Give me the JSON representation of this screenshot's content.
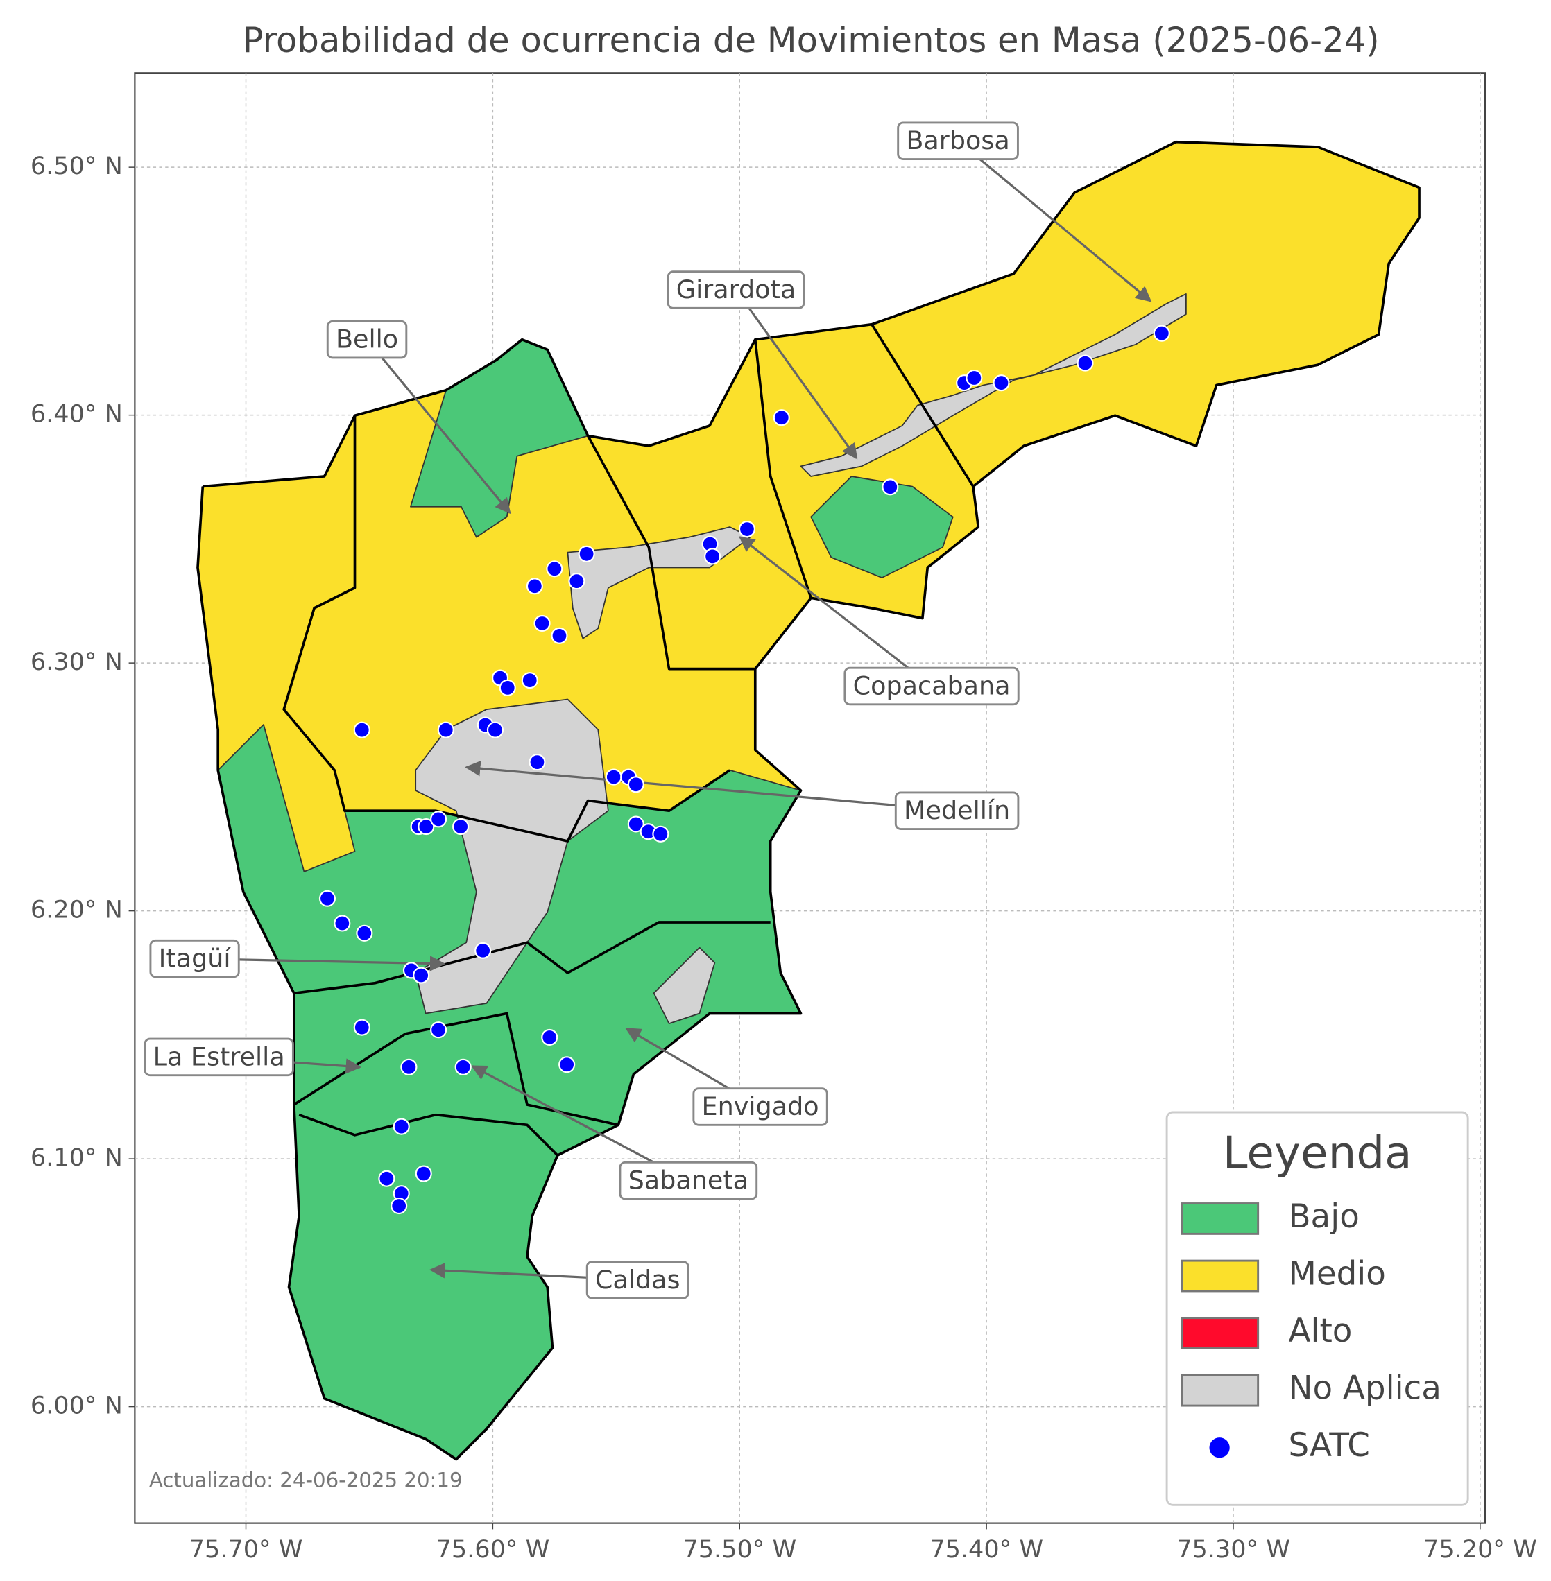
{
  "chart_data": {
    "type": "map",
    "title": "Probabilidad de ocurrencia de Movimientos en Masa (2025-06-24)",
    "xlim": [
      -75.745,
      -75.198
    ],
    "ylim": [
      5.953,
      6.538
    ],
    "xticks": [
      {
        "value": -75.7,
        "label": "75.70° W"
      },
      {
        "value": -75.6,
        "label": "75.60° W"
      },
      {
        "value": -75.5,
        "label": "75.50° W"
      },
      {
        "value": -75.4,
        "label": "75.40° W"
      },
      {
        "value": -75.3,
        "label": "75.30° W"
      },
      {
        "value": -75.2,
        "label": "75.20° W"
      }
    ],
    "yticks": [
      {
        "value": 6.0,
        "label": "6.00° N"
      },
      {
        "value": 6.1,
        "label": "6.10° N"
      },
      {
        "value": 6.2,
        "label": "6.20° N"
      },
      {
        "value": 6.3,
        "label": "6.30° N"
      },
      {
        "value": 6.4,
        "label": "6.40° N"
      },
      {
        "value": 6.5,
        "label": "6.50° N"
      }
    ],
    "grid": true,
    "legend": {
      "title": "Leyenda",
      "position": "lower right",
      "items": [
        {
          "label": "Bajo",
          "color": "#4bc878"
        },
        {
          "label": "Medio",
          "color": "#fbe02b"
        },
        {
          "label": "Alto",
          "color": "#ff0a2c"
        },
        {
          "label": "No Aplica",
          "color": "#d3d3d3"
        }
      ]
    },
    "series": [
      {
        "name": "SATC",
        "color": "#0000ff",
        "x": [
          -75.483,
          -75.409,
          -75.405,
          -75.394,
          -75.36,
          -75.329,
          -75.439,
          -75.497,
          -75.512,
          -75.511,
          -75.562,
          -75.575,
          -75.566,
          -75.583,
          -75.58,
          -75.573,
          -75.597,
          -75.594,
          -75.585,
          -75.653,
          -75.619,
          -75.603,
          -75.599,
          -75.582,
          -75.551,
          -75.545,
          -75.542,
          -75.542,
          -75.537,
          -75.532,
          -75.63,
          -75.627,
          -75.622,
          -75.613,
          -75.667,
          -75.661,
          -75.652,
          -75.604,
          -75.633,
          -75.629,
          -75.653,
          -75.622,
          -75.577,
          -75.57,
          -75.634,
          -75.612,
          -75.637,
          -75.643,
          -75.628,
          -75.637,
          -75.638
        ],
        "y": [
          6.399,
          6.413,
          6.415,
          6.413,
          6.421,
          6.433,
          6.371,
          6.354,
          6.348,
          6.343,
          6.344,
          6.338,
          6.333,
          6.331,
          6.316,
          6.311,
          6.294,
          6.29,
          6.293,
          6.273,
          6.273,
          6.275,
          6.273,
          6.26,
          6.254,
          6.254,
          6.251,
          6.235,
          6.232,
          6.231,
          6.234,
          6.234,
          6.237,
          6.234,
          6.205,
          6.195,
          6.191,
          6.184,
          6.176,
          6.174,
          6.153,
          6.152,
          6.149,
          6.138,
          6.137,
          6.137,
          6.113,
          6.092,
          6.094,
          6.086,
          6.081
        ]
      }
    ],
    "annotations": [
      "Barbosa",
      "Girardota",
      "Bello",
      "Copacabana",
      "Medellín",
      "Itagüí",
      "La Estrella",
      "Envigado",
      "Sabaneta",
      "Caldas"
    ],
    "footnote": "Actualizado: 24-06-2025 20:19"
  }
}
